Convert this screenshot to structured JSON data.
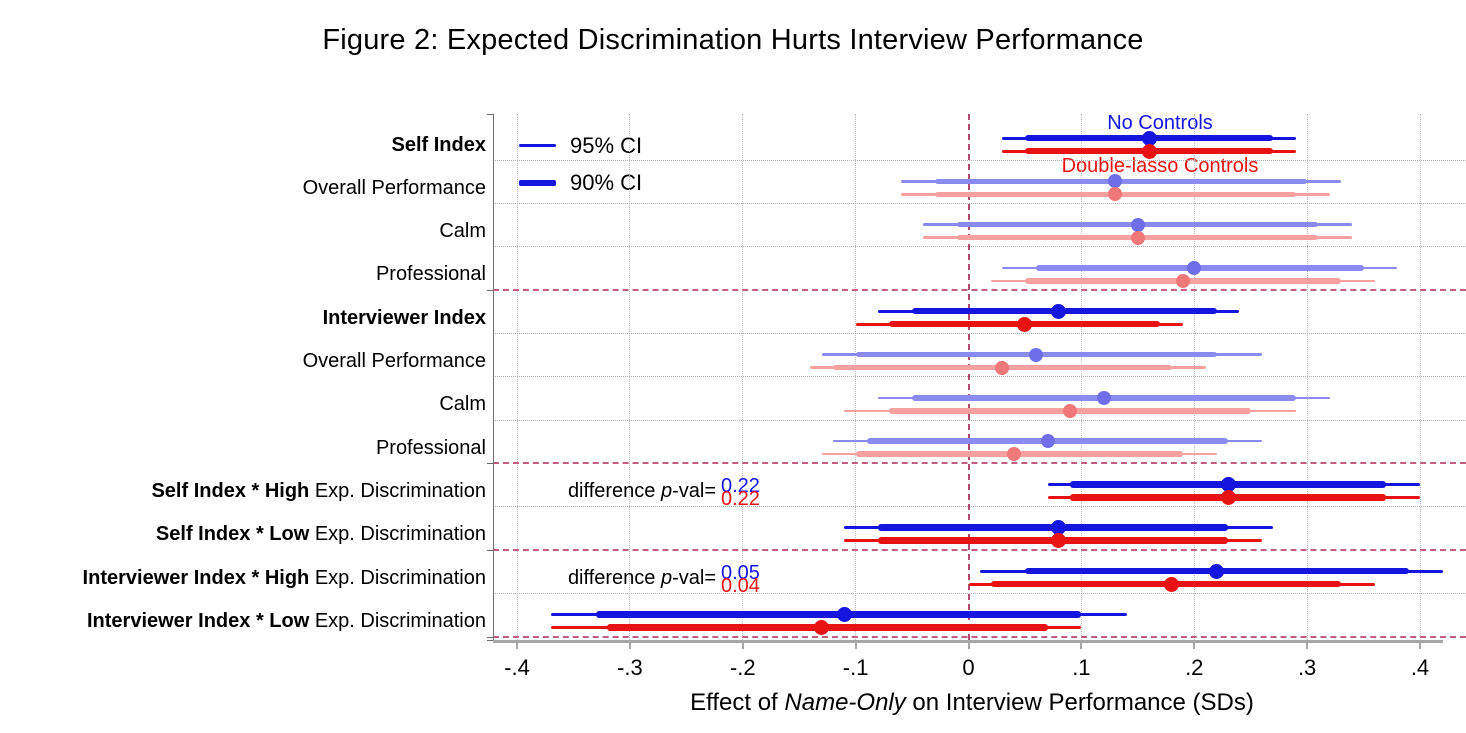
{
  "chart_data": {
    "type": "scatter",
    "subtype": "coefficient_forest_plot",
    "title": "Figure 2: Expected Discrimination Hurts Interview Performance",
    "xlabel": {
      "prefix": "Effect of ",
      "italic": "Name-Only",
      "suffix": " on Interview Performance (SDs)"
    },
    "xlim": [
      -0.4,
      0.4
    ],
    "x_ticks": [
      {
        "value": -0.4,
        "label": "-.4"
      },
      {
        "value": -0.3,
        "label": "-.3"
      },
      {
        "value": -0.2,
        "label": "-.2"
      },
      {
        "value": -0.1,
        "label": "-.1"
      },
      {
        "value": 0,
        "label": "0"
      },
      {
        "value": 0.1,
        "label": ".1"
      },
      {
        "value": 0.2,
        "label": ".2"
      },
      {
        "value": 0.3,
        "label": ".3"
      },
      {
        "value": 0.4,
        "label": ".4"
      }
    ],
    "grid": "dotted vertical at each tick, dotted horizontal between rows, dashed separators between groups, dashed vertical zero line",
    "legend": [
      {
        "label": "95% CI",
        "style": "thin"
      },
      {
        "label": "90% CI",
        "style": "thick"
      }
    ],
    "legend_position": "top-left inside plot",
    "series_labels": {
      "blue": "No Controls",
      "red": "Double-lasso Controls"
    },
    "annotation_label": {
      "prefix": "difference ",
      "italic": "p",
      "suffix": "-val="
    },
    "colors": {
      "blue": "#1515e0",
      "red": "#e81212",
      "blue_muted": "#8a8af0",
      "red_muted": "#f7a0a0",
      "blue_dot_muted": "#6e6ee8",
      "red_dot_muted": "#f07878",
      "zero_line": "#b04a6a",
      "separator": "#c05f7d",
      "grid": "#bcbcbc",
      "axis": "#a6a6a6",
      "text": "#000000"
    },
    "rows": [
      {
        "label_bold": "Self Index",
        "label_regular": "",
        "muted": false,
        "blue": {
          "est": 0.16,
          "ci95": [
            0.03,
            0.29
          ],
          "ci90": [
            0.05,
            0.27
          ]
        },
        "red": {
          "est": 0.16,
          "ci95": [
            0.03,
            0.29
          ],
          "ci90": [
            0.05,
            0.27
          ]
        }
      },
      {
        "label_bold": "",
        "label_regular": "Overall Performance",
        "muted": true,
        "blue": {
          "est": 0.13,
          "ci95": [
            -0.06,
            0.33
          ],
          "ci90": [
            -0.03,
            0.3
          ]
        },
        "red": {
          "est": 0.13,
          "ci95": [
            -0.06,
            0.32
          ],
          "ci90": [
            -0.03,
            0.29
          ]
        }
      },
      {
        "label_bold": "",
        "label_regular": "Calm",
        "muted": true,
        "blue": {
          "est": 0.15,
          "ci95": [
            -0.04,
            0.34
          ],
          "ci90": [
            -0.01,
            0.31
          ]
        },
        "red": {
          "est": 0.15,
          "ci95": [
            -0.04,
            0.34
          ],
          "ci90": [
            -0.01,
            0.31
          ]
        }
      },
      {
        "label_bold": "",
        "label_regular": "Professional",
        "muted": true,
        "blue": {
          "est": 0.2,
          "ci95": [
            0.03,
            0.38
          ],
          "ci90": [
            0.06,
            0.35
          ]
        },
        "red": {
          "est": 0.19,
          "ci95": [
            0.02,
            0.36
          ],
          "ci90": [
            0.05,
            0.33
          ]
        }
      },
      {
        "label_bold": "Interviewer Index",
        "label_regular": "",
        "muted": false,
        "blue": {
          "est": 0.08,
          "ci95": [
            -0.08,
            0.24
          ],
          "ci90": [
            -0.05,
            0.22
          ]
        },
        "red": {
          "est": 0.05,
          "ci95": [
            -0.1,
            0.19
          ],
          "ci90": [
            -0.07,
            0.17
          ]
        }
      },
      {
        "label_bold": "",
        "label_regular": "Overall Performance",
        "muted": true,
        "blue": {
          "est": 0.06,
          "ci95": [
            -0.13,
            0.26
          ],
          "ci90": [
            -0.1,
            0.22
          ]
        },
        "red": {
          "est": 0.03,
          "ci95": [
            -0.14,
            0.21
          ],
          "ci90": [
            -0.12,
            0.18
          ]
        }
      },
      {
        "label_bold": "",
        "label_regular": "Calm",
        "muted": true,
        "blue": {
          "est": 0.12,
          "ci95": [
            -0.08,
            0.32
          ],
          "ci90": [
            -0.05,
            0.29
          ]
        },
        "red": {
          "est": 0.09,
          "ci95": [
            -0.11,
            0.29
          ],
          "ci90": [
            -0.07,
            0.25
          ]
        }
      },
      {
        "label_bold": "",
        "label_regular": "Professional",
        "muted": true,
        "blue": {
          "est": 0.07,
          "ci95": [
            -0.12,
            0.26
          ],
          "ci90": [
            -0.09,
            0.23
          ]
        },
        "red": {
          "est": 0.04,
          "ci95": [
            -0.13,
            0.22
          ],
          "ci90": [
            -0.1,
            0.19
          ]
        }
      },
      {
        "label_bold": "Self Index * High",
        "label_regular": " Exp. Discrimination",
        "muted": false,
        "blue": {
          "est": 0.23,
          "ci95": [
            0.07,
            0.4
          ],
          "ci90": [
            0.09,
            0.37
          ]
        },
        "red": {
          "est": 0.23,
          "ci95": [
            0.07,
            0.4
          ],
          "ci90": [
            0.09,
            0.37
          ]
        },
        "pval": {
          "blue": "0.22",
          "red": "0.22"
        }
      },
      {
        "label_bold": "Self Index * Low",
        "label_regular": " Exp. Discrimination",
        "muted": false,
        "blue": {
          "est": 0.08,
          "ci95": [
            -0.11,
            0.27
          ],
          "ci90": [
            -0.08,
            0.23
          ]
        },
        "red": {
          "est": 0.08,
          "ci95": [
            -0.11,
            0.26
          ],
          "ci90": [
            -0.08,
            0.23
          ]
        }
      },
      {
        "label_bold": "Interviewer Index * High",
        "label_regular": " Exp. Discrimination",
        "muted": false,
        "blue": {
          "est": 0.22,
          "ci95": [
            0.01,
            0.42
          ],
          "ci90": [
            0.05,
            0.39
          ]
        },
        "red": {
          "est": 0.18,
          "ci95": [
            0.0,
            0.36
          ],
          "ci90": [
            0.02,
            0.33
          ]
        },
        "pval": {
          "blue": "0.05",
          "red": "0.04"
        }
      },
      {
        "label_bold": "Interviewer Index * Low",
        "label_regular": " Exp. Discrimination",
        "muted": false,
        "blue": {
          "est": -0.11,
          "ci95": [
            -0.37,
            0.14
          ],
          "ci90": [
            -0.33,
            0.1
          ]
        },
        "red": {
          "est": -0.13,
          "ci95": [
            -0.37,
            0.1
          ],
          "ci90": [
            -0.32,
            0.07
          ]
        }
      }
    ],
    "group_separators_after_row": [
      3,
      7,
      9,
      11
    ]
  }
}
